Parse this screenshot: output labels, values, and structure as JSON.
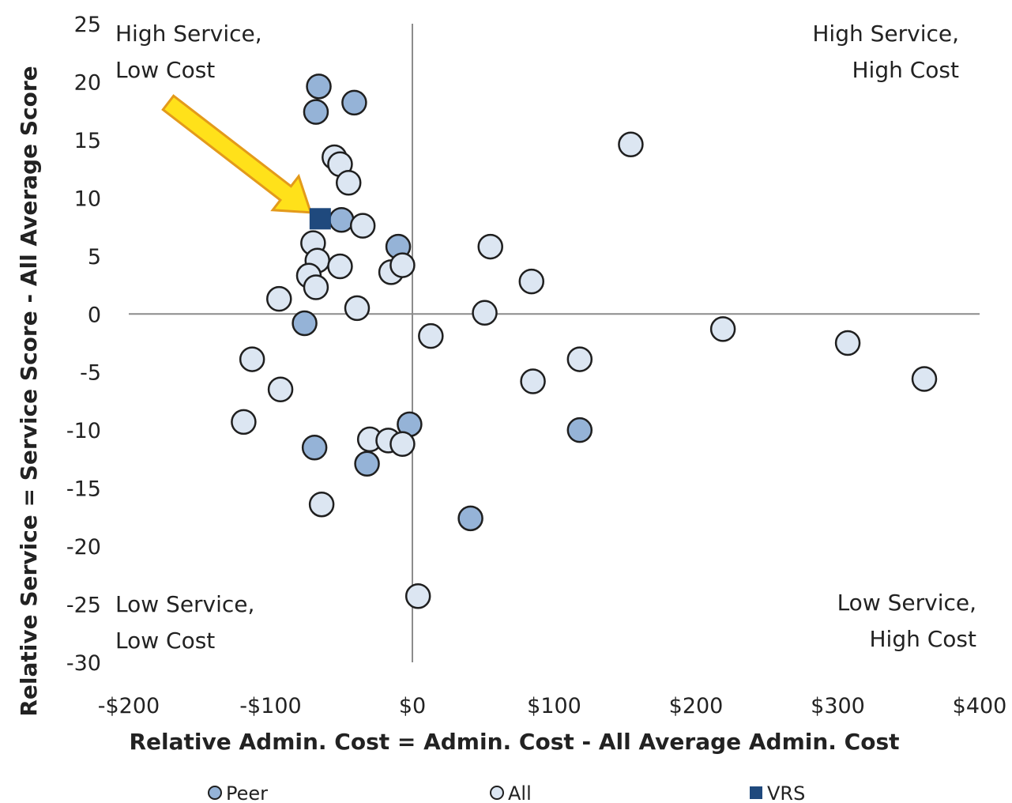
{
  "chart_data": {
    "type": "scatter",
    "xlabel": "Relative Admin. Cost = Admin. Cost - All Average Admin. Cost",
    "ylabel": "Relative Service = Service Score - All Average Score",
    "xlim": [
      -200,
      400
    ],
    "ylim": [
      -30,
      25
    ],
    "x_ticks": [
      {
        "value": -200,
        "label": "-$200"
      },
      {
        "value": -100,
        "label": "-$100"
      },
      {
        "value": 0,
        "label": "$0"
      },
      {
        "value": 100,
        "label": "$100"
      },
      {
        "value": 200,
        "label": "$200"
      },
      {
        "value": 300,
        "label": "$300"
      },
      {
        "value": 400,
        "label": "$400"
      }
    ],
    "y_ticks": [
      {
        "value": 25,
        "label": "25"
      },
      {
        "value": 20,
        "label": "20"
      },
      {
        "value": 15,
        "label": "15"
      },
      {
        "value": 10,
        "label": "10"
      },
      {
        "value": 5,
        "label": "5"
      },
      {
        "value": 0,
        "label": "0"
      },
      {
        "value": -5,
        "label": "-5"
      },
      {
        "value": -10,
        "label": "-10"
      },
      {
        "value": -15,
        "label": "-15"
      },
      {
        "value": -20,
        "label": "-20"
      },
      {
        "value": -25,
        "label": "-25"
      },
      {
        "value": -30,
        "label": "-30"
      }
    ],
    "grid": false,
    "legend_position": "bottom",
    "quadrant_labels": [
      {
        "id": "top-left",
        "lines": [
          "High Service,",
          "Low Cost"
        ]
      },
      {
        "id": "top-right",
        "lines": [
          "High Service,",
          "High Cost"
        ]
      },
      {
        "id": "bottom-left",
        "lines": [
          "Low Service,",
          "Low Cost"
        ]
      },
      {
        "id": "bottom-right",
        "lines": [
          "Low Service,",
          "High Cost"
        ]
      }
    ],
    "series": [
      {
        "name": "Peer",
        "marker": "circle",
        "color": "#95B3D7",
        "stroke": "#1F1F1F",
        "points": [
          {
            "x": -66,
            "y": 19.6
          },
          {
            "x": -68,
            "y": 17.4
          },
          {
            "x": -41,
            "y": 18.2
          },
          {
            "x": -50,
            "y": 8.1
          },
          {
            "x": -10,
            "y": 5.8
          },
          {
            "x": -76,
            "y": -0.8
          },
          {
            "x": -69,
            "y": -11.5
          },
          {
            "x": -32,
            "y": -12.9
          },
          {
            "x": -2,
            "y": -9.5
          },
          {
            "x": 118,
            "y": -10
          },
          {
            "x": 41,
            "y": -17.6
          }
        ]
      },
      {
        "name": "All",
        "marker": "circle",
        "color": "#DCE6F2",
        "stroke": "#1F1F1F",
        "points": [
          {
            "x": -55,
            "y": 13.5
          },
          {
            "x": -51,
            "y": 12.9
          },
          {
            "x": -45,
            "y": 11.3
          },
          {
            "x": -35,
            "y": 7.6
          },
          {
            "x": -70,
            "y": 6.1
          },
          {
            "x": -67,
            "y": 4.6
          },
          {
            "x": -51,
            "y": 4.1
          },
          {
            "x": -73,
            "y": 3.3
          },
          {
            "x": -68,
            "y": 2.3
          },
          {
            "x": -94,
            "y": 1.3
          },
          {
            "x": -39,
            "y": 0.5
          },
          {
            "x": -15,
            "y": 3.6
          },
          {
            "x": -7,
            "y": 4.2
          },
          {
            "x": 55,
            "y": 5.8
          },
          {
            "x": 84,
            "y": 2.8
          },
          {
            "x": 51,
            "y": 0.1
          },
          {
            "x": 13,
            "y": -1.9
          },
          {
            "x": 154,
            "y": 14.6
          },
          {
            "x": 219,
            "y": -1.3
          },
          {
            "x": 307,
            "y": -2.5
          },
          {
            "x": 361,
            "y": -5.6
          },
          {
            "x": 118,
            "y": -3.9
          },
          {
            "x": 85,
            "y": -5.8
          },
          {
            "x": -113,
            "y": -3.9
          },
          {
            "x": -93,
            "y": -6.5
          },
          {
            "x": -119,
            "y": -9.3
          },
          {
            "x": -30,
            "y": -10.8
          },
          {
            "x": -17,
            "y": -10.9
          },
          {
            "x": -7,
            "y": -11.2
          },
          {
            "x": -64,
            "y": -16.4
          },
          {
            "x": 4,
            "y": -24.3
          }
        ]
      },
      {
        "name": "VRS",
        "marker": "square",
        "color": "#1F497D",
        "stroke": "#1F497D",
        "points": [
          {
            "x": -65,
            "y": 8.2
          }
        ]
      }
    ],
    "annotation": {
      "type": "arrow",
      "color": "#FFE11A",
      "points_to": "VRS"
    }
  }
}
